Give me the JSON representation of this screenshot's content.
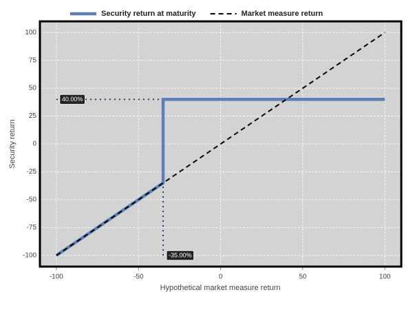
{
  "chart_data": {
    "type": "line",
    "xlabel": "Hypothetical market measure return",
    "ylabel": "Security return",
    "series": [
      {
        "name": "Security return at maturity",
        "color": "#5b80b8",
        "dash": false,
        "x": [
          -100,
          -35,
          -35,
          100
        ],
        "values": [
          -100,
          -35,
          40,
          40
        ]
      },
      {
        "name": "Market measure return",
        "color": "#000000",
        "dash": true,
        "x": [
          -100,
          100
        ],
        "values": [
          -100,
          100
        ]
      }
    ],
    "annotations": [
      {
        "text": "40.00%",
        "x": [
          -100,
          -35
        ],
        "y": [
          40,
          40
        ]
      },
      {
        "text": "-35.00%",
        "x": [
          -35,
          -35
        ],
        "y": [
          -100,
          40
        ]
      }
    ],
    "xlim": [
      -110,
      110
    ],
    "xticks": [
      -100,
      -50,
      0,
      50,
      100
    ],
    "ylim": [
      -110,
      110
    ],
    "yticks": [
      -100,
      -75,
      -50,
      -25,
      0,
      25,
      50,
      75,
      100
    ],
    "grid": true,
    "legend": "top"
  }
}
